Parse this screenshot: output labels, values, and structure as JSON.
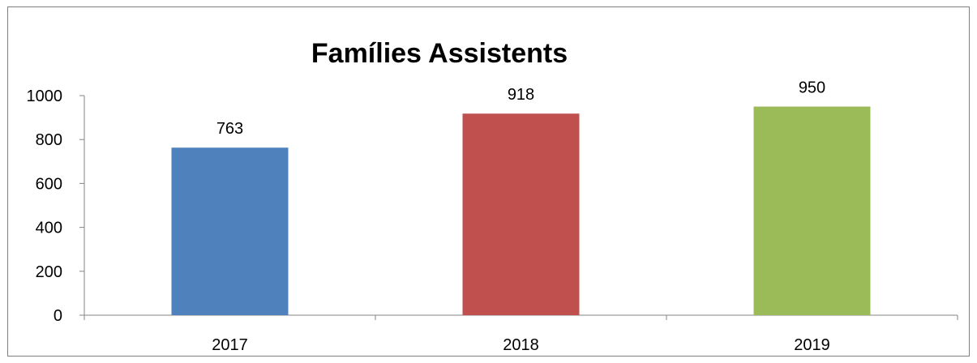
{
  "chart_data": {
    "type": "bar",
    "title": "Famílies Assistents",
    "categories": [
      "2017",
      "2018",
      "2019"
    ],
    "values": [
      763,
      918,
      950
    ],
    "data_labels": [
      "763",
      "918",
      "950"
    ],
    "colors": [
      "#4f81bd",
      "#c0504d",
      "#9bbb59"
    ],
    "ylim": [
      0,
      1000
    ],
    "yticks": [
      "0",
      "200",
      "400",
      "600",
      "800",
      "1000"
    ],
    "grid": false,
    "legend": "none",
    "xlabel": "",
    "ylabel": ""
  }
}
